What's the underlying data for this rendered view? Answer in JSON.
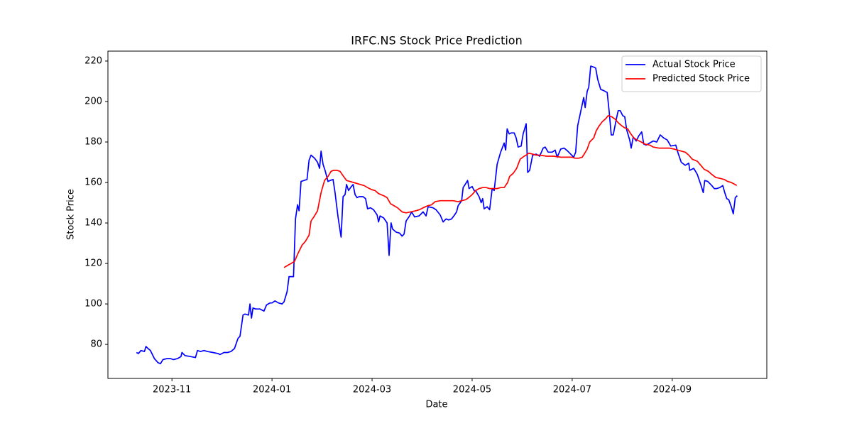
{
  "chart_data": {
    "type": "line",
    "title": "IRFC.NS Stock Price Prediction",
    "xlabel": "Date",
    "ylabel": "Stock Price",
    "xlim": [
      -1.28,
      11.89
    ],
    "xticks": [
      {
        "value": 0,
        "label": "2023-11"
      },
      {
        "value": 2,
        "label": "2024-01"
      },
      {
        "value": 4,
        "label": "2024-03"
      },
      {
        "value": 6,
        "label": "2024-05"
      },
      {
        "value": 8,
        "label": "2024-07"
      },
      {
        "value": 10,
        "label": "2024-09"
      }
    ],
    "ylim": [
      63.2,
      224.9
    ],
    "yticks": [
      80,
      100,
      120,
      140,
      160,
      180,
      200,
      220
    ],
    "grid": false,
    "legend": "upper right",
    "series": [
      {
        "name": "Actual Stock Price",
        "color": "#0000ff",
        "x": [
          -0.71,
          -0.67,
          -0.62,
          -0.55,
          -0.52,
          -0.48,
          -0.43,
          -0.35,
          -0.28,
          -0.23,
          -0.18,
          -0.1,
          -0.03,
          0.03,
          0.11,
          0.18,
          0.2,
          0.26,
          0.37,
          0.47,
          0.51,
          0.57,
          0.64,
          0.71,
          0.82,
          0.92,
          0.96,
          1.04,
          1.11,
          1.18,
          1.25,
          1.32,
          1.36,
          1.42,
          1.46,
          1.53,
          1.56,
          1.59,
          1.62,
          1.67,
          1.76,
          1.84,
          1.89,
          1.96,
          2.0,
          2.06,
          2.13,
          2.2,
          2.24,
          2.3,
          2.34,
          2.43,
          2.47,
          2.51,
          2.54,
          2.58,
          2.64,
          2.7,
          2.74,
          2.78,
          2.85,
          2.91,
          2.95,
          2.98,
          3.02,
          3.06,
          3.12,
          3.16,
          3.22,
          3.26,
          3.32,
          3.38,
          3.42,
          3.46,
          3.49,
          3.53,
          3.57,
          3.62,
          3.66,
          3.7,
          3.74,
          3.82,
          3.87,
          3.91,
          3.97,
          4.03,
          4.1,
          4.13,
          4.16,
          4.23,
          4.3,
          4.34,
          4.38,
          4.41,
          4.48,
          4.55,
          4.6,
          4.64,
          4.68,
          4.75,
          4.79,
          4.85,
          4.94,
          5.02,
          5.08,
          5.12,
          5.22,
          5.28,
          5.36,
          5.42,
          5.48,
          5.53,
          5.59,
          5.65,
          5.69,
          5.72,
          5.79,
          5.82,
          5.86,
          5.91,
          5.94,
          6.0,
          6.04,
          6.07,
          6.14,
          6.18,
          6.21,
          6.24,
          6.3,
          6.35,
          6.4,
          6.44,
          6.5,
          6.57,
          6.64,
          6.67,
          6.7,
          6.74,
          6.78,
          6.84,
          6.88,
          6.92,
          6.98,
          7.02,
          7.08,
          7.11,
          7.15,
          7.21,
          7.28,
          7.35,
          7.42,
          7.46,
          7.52,
          7.6,
          7.66,
          7.7,
          7.77,
          7.84,
          7.91,
          7.99,
          8.03,
          8.07,
          8.11,
          8.17,
          8.23,
          8.26,
          8.3,
          8.33,
          8.37,
          8.43,
          8.47,
          8.51,
          8.57,
          8.62,
          8.7,
          8.74,
          8.78,
          8.82,
          8.88,
          8.92,
          8.96,
          9.01,
          9.05,
          9.09,
          9.15,
          9.18,
          9.22,
          9.28,
          9.33,
          9.39,
          9.43,
          9.48,
          9.55,
          9.62,
          9.69,
          9.76,
          9.83,
          9.9,
          9.97,
          10.07,
          10.11,
          10.18,
          10.26,
          10.33,
          10.35,
          10.43,
          10.5,
          10.57,
          10.62,
          10.65,
          10.71,
          10.79,
          10.84,
          10.89,
          10.95,
          11.01,
          11.05,
          11.09,
          11.13,
          11.18,
          11.22,
          11.26,
          11.3
        ],
        "values": [
          76,
          75.5,
          77,
          76.5,
          79,
          78,
          77,
          73,
          71,
          70.5,
          72.5,
          73,
          73,
          72.5,
          73,
          74,
          76,
          74.5,
          74,
          73.5,
          77,
          76.5,
          77,
          76.5,
          76,
          75.5,
          75,
          76,
          76,
          76.5,
          78,
          83,
          84,
          94.5,
          95,
          94.5,
          100,
          93,
          98,
          97.5,
          97.5,
          96.5,
          99.5,
          100.5,
          100.5,
          101.5,
          100.5,
          100,
          101,
          106,
          113.5,
          113.5,
          142,
          149,
          146,
          160.5,
          161,
          161.5,
          171,
          173.5,
          172,
          170,
          167,
          175.5,
          169,
          166,
          160.5,
          161,
          161.5,
          155,
          143,
          133,
          153,
          154,
          159,
          156,
          157.5,
          159,
          154,
          152.5,
          153,
          153,
          152,
          147,
          147.5,
          146.5,
          144,
          140.5,
          143.5,
          142.5,
          140,
          124,
          140,
          137,
          135.5,
          135,
          133.5,
          134.5,
          141,
          143.5,
          145.5,
          143,
          143.5,
          145.5,
          143.5,
          148,
          147.5,
          146.5,
          144,
          140.5,
          142,
          141.5,
          142,
          144,
          145.5,
          148.5,
          151,
          157.5,
          159,
          161,
          157,
          158,
          156,
          156,
          153,
          150,
          152,
          147,
          148,
          146.5,
          157,
          156,
          169,
          175,
          179.5,
          176,
          186.5,
          184,
          184.5,
          184.5,
          182,
          177.5,
          178,
          184,
          189,
          165,
          166,
          173.5,
          174,
          173,
          177,
          177.5,
          175,
          175,
          176,
          172.5,
          176.5,
          177,
          175.5,
          173.5,
          172.5,
          175,
          188,
          195,
          202,
          197,
          205,
          207,
          217.5,
          217,
          216.5,
          211,
          206,
          205.5,
          204.5,
          195,
          183.5,
          183.5,
          191,
          195.5,
          195.5,
          193,
          192.5,
          186,
          181,
          177,
          182.5,
          180.5,
          183,
          185,
          179,
          178.5,
          179.5,
          180.5,
          180,
          183.5,
          182,
          181,
          178,
          178.5,
          175,
          170,
          168.5,
          169.5,
          166,
          167,
          164,
          159,
          155,
          161,
          160.5,
          158.5,
          157,
          157,
          157.5,
          158.5,
          155,
          152,
          151.5,
          148,
          144.5,
          152.5,
          153.5
        ]
      },
      {
        "name": "Predicted Stock Price",
        "color": "#ff0000",
        "x": [
          2.24,
          2.31,
          2.38,
          2.45,
          2.52,
          2.6,
          2.67,
          2.74,
          2.78,
          2.85,
          2.91,
          2.98,
          3.05,
          3.12,
          3.18,
          3.23,
          3.3,
          3.36,
          3.43,
          3.49,
          3.56,
          3.63,
          3.7,
          3.77,
          3.84,
          3.91,
          3.99,
          4.06,
          4.13,
          4.23,
          4.3,
          4.37,
          4.44,
          4.51,
          4.6,
          4.68,
          4.77,
          4.87,
          4.94,
          5.02,
          5.11,
          5.19,
          5.26,
          5.36,
          5.45,
          5.53,
          5.62,
          5.72,
          5.79,
          5.87,
          5.93,
          6.0,
          6.07,
          6.14,
          6.21,
          6.28,
          6.35,
          6.43,
          6.5,
          6.57,
          6.64,
          6.71,
          6.75,
          6.82,
          6.89,
          6.96,
          7.04,
          7.08,
          7.13,
          7.21,
          7.28,
          7.35,
          7.49,
          7.63,
          7.77,
          7.91,
          7.99,
          8.06,
          8.13,
          8.2,
          8.24,
          8.3,
          8.35,
          8.43,
          8.48,
          8.54,
          8.6,
          8.67,
          8.72,
          8.79,
          8.87,
          8.92,
          8.99,
          9.05,
          9.11,
          9.16,
          9.23,
          9.3,
          9.38,
          9.45,
          9.55,
          9.62,
          9.73,
          9.83,
          9.94,
          10.04,
          10.11,
          10.18,
          10.26,
          10.33,
          10.4,
          10.5,
          10.57,
          10.64,
          10.72,
          10.79,
          10.87,
          10.96,
          11.04,
          11.11,
          11.18,
          11.22,
          11.29
        ],
        "values": [
          118,
          119,
          120,
          121,
          125,
          129,
          131,
          134,
          141,
          143.5,
          146,
          155,
          161,
          163,
          165.5,
          166,
          166,
          165.5,
          163,
          161,
          160.5,
          160,
          159.5,
          159,
          158.5,
          157.5,
          156.5,
          156,
          154.5,
          153.5,
          152.5,
          149.5,
          148.5,
          147.5,
          145.5,
          145,
          145.5,
          146,
          146.5,
          147.5,
          148.5,
          149,
          150.5,
          151,
          151,
          151,
          151,
          150.5,
          151,
          151.5,
          152.5,
          154,
          156,
          157,
          157.5,
          157.5,
          157,
          157,
          157,
          157.5,
          157.5,
          160,
          163,
          164.5,
          167,
          171.5,
          173,
          173.5,
          174.5,
          174,
          173.5,
          173.5,
          173,
          173,
          172.5,
          172.5,
          172.5,
          172,
          172,
          172.5,
          174,
          176.5,
          180,
          182,
          185.5,
          188,
          190,
          191.5,
          193,
          192.5,
          191,
          189.5,
          188,
          187,
          186.5,
          184.5,
          182,
          181,
          180,
          179,
          178.5,
          177.5,
          177,
          177,
          177,
          176.5,
          176,
          175.5,
          175,
          173.5,
          171.5,
          170.5,
          168.5,
          166.5,
          165.5,
          164,
          162.5,
          162,
          161.5,
          160.5,
          160,
          159.5,
          158.5
        ]
      }
    ]
  }
}
